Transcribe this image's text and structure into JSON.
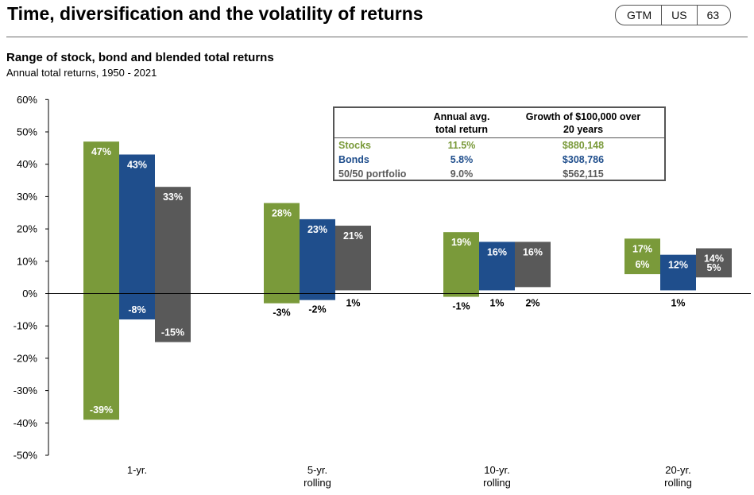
{
  "header": {
    "title": "Time, diversification and the volatility of returns",
    "badges": [
      "GTM",
      "US",
      "63"
    ]
  },
  "table": {
    "col1_line1": "Annual avg.",
    "col1_line2": "total return",
    "col2_line1": "Growth of $100,000 over",
    "col2_line2": "20 years",
    "rows": [
      {
        "name": "Stocks",
        "return": "11.5%",
        "growth": "$880,148",
        "color": "#7a9a3a"
      },
      {
        "name": "Bonds",
        "return": "5.8%",
        "growth": "$308,786",
        "color": "#1f4e8c"
      },
      {
        "name": "50/50 portfolio",
        "return": "9.0%",
        "growth": "$562,115",
        "color": "#5a5a5a"
      }
    ]
  },
  "chart_data": {
    "type": "floating-bar",
    "title": "Range of stock, bond and blended total returns",
    "subtitle": "Annual total returns, 1950 - 2021",
    "ylim": [
      -50,
      60
    ],
    "yticks": [
      -50,
      -40,
      -30,
      -20,
      -10,
      0,
      10,
      20,
      30,
      40,
      50,
      60
    ],
    "ytick_format": "percent",
    "grid": false,
    "categories": [
      {
        "line1": "1-yr.",
        "line2": ""
      },
      {
        "line1": "5-yr.",
        "line2": "rolling"
      },
      {
        "line1": "10-yr.",
        "line2": "rolling"
      },
      {
        "line1": "20-yr.",
        "line2": "rolling"
      }
    ],
    "series": [
      {
        "name": "Stocks",
        "color": "#7a9a3a",
        "max": [
          47,
          28,
          19,
          17
        ],
        "min": [
          -39,
          -3,
          -1,
          6
        ]
      },
      {
        "name": "Bonds",
        "color": "#1f4e8c",
        "max": [
          43,
          23,
          16,
          12
        ],
        "min": [
          -8,
          -2,
          1,
          1
        ]
      },
      {
        "name": "50/50 portfolio",
        "color": "#595959",
        "max": [
          33,
          21,
          16,
          14
        ],
        "min": [
          -15,
          1,
          2,
          5
        ]
      }
    ]
  }
}
